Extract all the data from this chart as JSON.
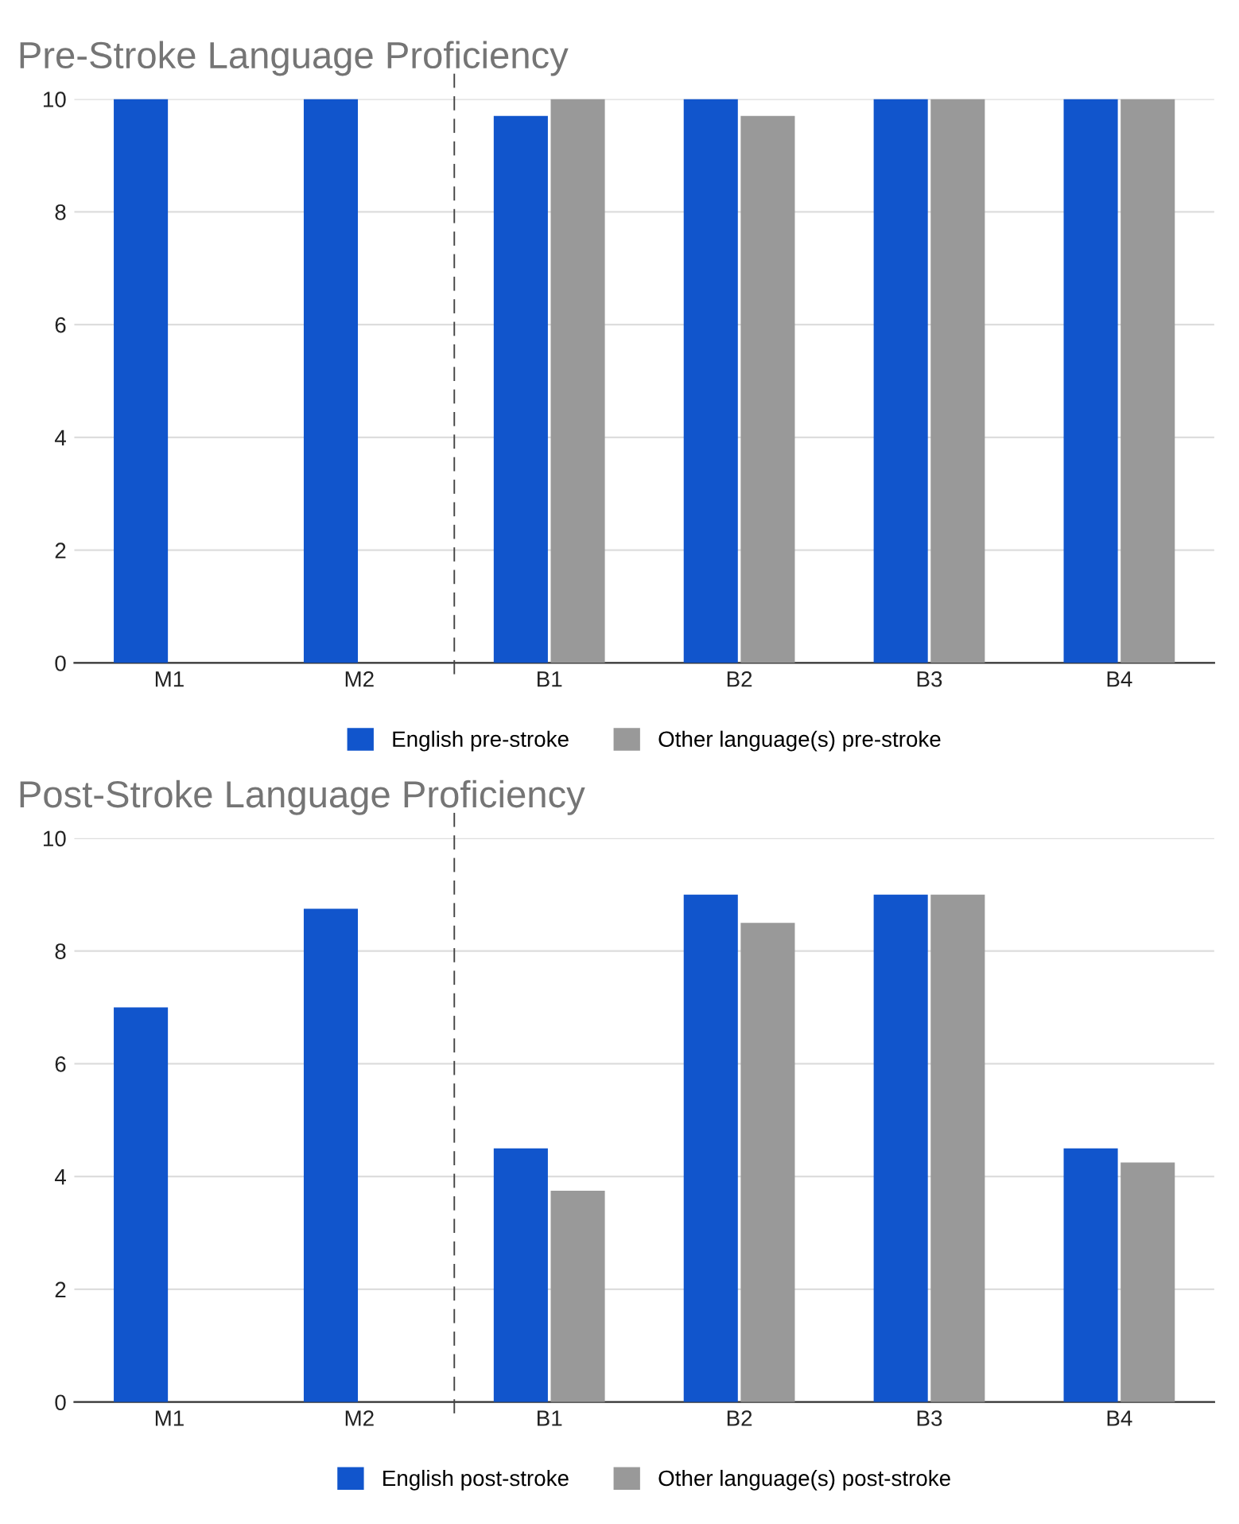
{
  "chart_data": [
    {
      "type": "bar",
      "title": "Pre-Stroke Language Proficiency",
      "categories": [
        "M1",
        "M2",
        "B1",
        "B2",
        "B3",
        "B4"
      ],
      "series": [
        {
          "name": "English pre-stroke",
          "color": "#1155cc",
          "values": [
            10,
            10,
            9.7,
            10,
            10,
            10
          ]
        },
        {
          "name": "Other language(s) pre-stroke",
          "color": "#999999",
          "values": [
            null,
            null,
            10,
            9.7,
            10,
            10
          ]
        }
      ],
      "ylim": [
        0,
        10
      ],
      "yticks": [
        0,
        2,
        4,
        6,
        8,
        10
      ],
      "grid": "y",
      "legend": "bottom"
    },
    {
      "type": "bar",
      "title": "Post-Stroke Language Proficiency",
      "categories": [
        "M1",
        "M2",
        "B1",
        "B2",
        "B3",
        "B4"
      ],
      "series": [
        {
          "name": "English post-stroke",
          "color": "#1155cc",
          "values": [
            7,
            8.75,
            4.5,
            9,
            9,
            4.5
          ]
        },
        {
          "name": "Other language(s) post-stroke",
          "color": "#999999",
          "values": [
            null,
            null,
            3.75,
            8.5,
            9,
            4.25
          ]
        }
      ],
      "ylim": [
        0,
        10
      ],
      "yticks": [
        0,
        2,
        4,
        6,
        8,
        10
      ],
      "grid": "y",
      "legend": "bottom"
    }
  ]
}
